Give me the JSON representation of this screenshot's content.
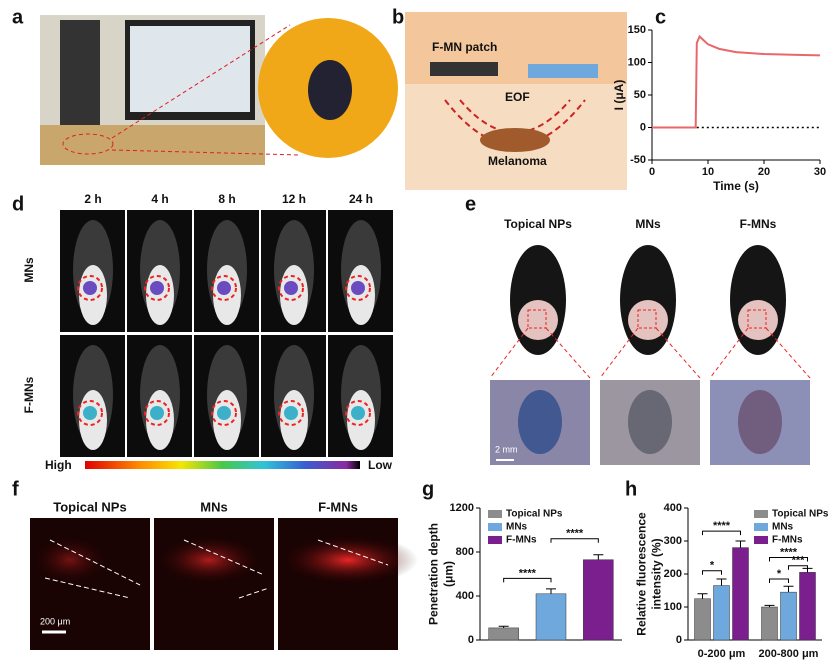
{
  "panel_letters": [
    "a",
    "b",
    "c",
    "d",
    "e",
    "f",
    "g",
    "h"
  ],
  "schematic": {
    "patch": "F-MN patch",
    "flow": "EOF",
    "tumor": "Melanoma"
  },
  "imaging": {
    "times": [
      "2 h",
      "4 h",
      "8 h",
      "12 h",
      "24 h"
    ],
    "groups": [
      "MNs",
      "F-MNs"
    ],
    "scale_high": "High",
    "scale_low": "Low"
  },
  "photos": {
    "groups": [
      "Topical NPs",
      "MNs",
      "F-MNs"
    ],
    "scale_bar": "2 mm"
  },
  "sections": {
    "groups": [
      "Topical NPs",
      "MNs",
      "F-MNs"
    ],
    "scale_bar": "200 μm"
  },
  "chart_data": [
    {
      "type": "line",
      "xlabel": "Time (s)",
      "ylabel": [
        "I (μA)"
      ],
      "xlim": [
        0,
        30
      ],
      "xticks": [
        0,
        10,
        20,
        30
      ],
      "ylim": [
        -50,
        150
      ],
      "yticks": [
        -50,
        0,
        50,
        100,
        150
      ],
      "x": [
        0,
        2,
        4,
        6,
        7.8,
        8,
        8.5,
        9,
        10,
        12,
        15,
        20,
        25,
        30
      ],
      "series": [
        {
          "color": "#e8686a",
          "values": [
            0,
            0,
            0,
            0,
            0,
            130,
            140,
            136,
            128,
            121,
            116,
            113,
            112,
            111
          ]
        },
        {
          "color": "#000000",
          "dash": true,
          "values": [
            null,
            null,
            null,
            null,
            null,
            0,
            0,
            0,
            0,
            0,
            0,
            0,
            0,
            0
          ]
        }
      ]
    },
    {
      "type": "bar",
      "ylabel": [
        "Penetration depth",
        "(μm)"
      ],
      "ylim": [
        0,
        1200
      ],
      "yticks": [
        0,
        400,
        800,
        1200
      ],
      "legend": "upper left",
      "series": [
        {
          "name": "Topical NPs",
          "color": "#8c8c8c",
          "values": [
            110
          ],
          "errors": [
            15
          ]
        },
        {
          "name": "MNs",
          "color": "#6fa8dc",
          "values": [
            420
          ],
          "errors": [
            45
          ]
        },
        {
          "name": "F-MNs",
          "color": "#7b1f8f",
          "values": [
            730
          ],
          "errors": [
            45
          ]
        }
      ],
      "annotations": [
        "****",
        "****"
      ]
    },
    {
      "type": "grouped-bar",
      "ylabel": [
        "Relative fluorescence",
        "intensity (%)"
      ],
      "ylim": [
        0,
        400
      ],
      "yticks": [
        0,
        100,
        200,
        300,
        400
      ],
      "legend": "upper right",
      "categories": [
        "0-200 μm",
        "200-800 μm"
      ],
      "series": [
        {
          "name": "Topical NPs",
          "color": "#8c8c8c",
          "values": [
            125,
            100
          ],
          "errors": [
            15,
            5
          ]
        },
        {
          "name": "MNs",
          "color": "#6fa8dc",
          "values": [
            165,
            145
          ],
          "errors": [
            20,
            18
          ]
        },
        {
          "name": "F-MNs",
          "color": "#7b1f8f",
          "values": [
            280,
            205
          ],
          "errors": [
            20,
            12
          ]
        }
      ],
      "annotations": [
        "*",
        "****",
        "*",
        "****",
        "***"
      ]
    }
  ]
}
